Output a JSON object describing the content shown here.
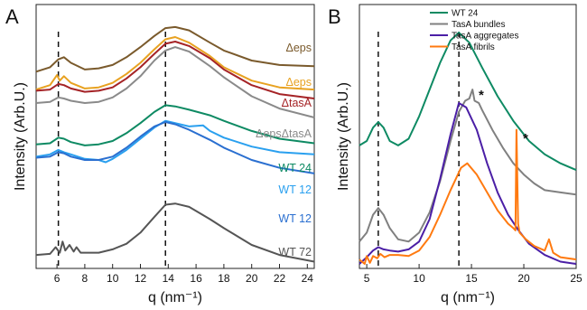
{
  "panels": {
    "a": {
      "letter": "A"
    },
    "b": {
      "letter": "B"
    }
  },
  "chart_data": [
    {
      "type": "line",
      "panel": "A",
      "xlabel": "q (nm⁻¹)",
      "ylabel": "Intensity (Arb.U.)",
      "xlim": [
        4.5,
        24.5
      ],
      "xticks": [
        6,
        8,
        10,
        12,
        14,
        16,
        18,
        20,
        22,
        24
      ],
      "y_scale": "arbitrary offsets, no y tick labels",
      "grid": false,
      "legend": "labels next to curves at right",
      "reference_lines_x": [
        6.1,
        13.8
      ],
      "series": [
        {
          "name": "Δeps",
          "color": "#7a5a2c",
          "x": [
            4.5,
            5.5,
            6.1,
            6.5,
            7.0,
            8,
            9,
            10,
            11,
            12,
            13,
            13.8,
            14.5,
            15.5,
            17,
            18,
            20,
            22,
            24.5
          ],
          "y": [
            0.86,
            0.88,
            0.915,
            0.925,
            0.9,
            0.87,
            0.875,
            0.89,
            0.925,
            0.97,
            1.02,
            1.055,
            1.06,
            1.045,
            0.99,
            0.955,
            0.91,
            0.89,
            0.885
          ]
        },
        {
          "name": "Δeps",
          "color": "#e8a221",
          "x": [
            4.5,
            5.5,
            6.0,
            6.2,
            6.5,
            7.0,
            8,
            9,
            10,
            11,
            12,
            13,
            13.8,
            14.5,
            15.5,
            17,
            18,
            20,
            22,
            24.5
          ],
          "y": [
            0.78,
            0.8,
            0.845,
            0.82,
            0.84,
            0.81,
            0.785,
            0.79,
            0.81,
            0.85,
            0.9,
            0.96,
            1.005,
            1.015,
            0.99,
            0.93,
            0.88,
            0.82,
            0.79,
            0.78
          ]
        },
        {
          "name": "ΔtasA",
          "color": "#a52326",
          "x": [
            4.5,
            5.5,
            6.1,
            6.5,
            7.0,
            8,
            9,
            10,
            11,
            12,
            13,
            13.8,
            14.5,
            15.5,
            17,
            18,
            20,
            22,
            24.5
          ],
          "y": [
            0.775,
            0.78,
            0.805,
            0.8,
            0.785,
            0.77,
            0.775,
            0.79,
            0.83,
            0.88,
            0.94,
            0.985,
            0.995,
            0.975,
            0.92,
            0.87,
            0.8,
            0.76,
            0.74
          ]
        },
        {
          "name": "ΔepsΔtasA",
          "color": "#8a8a8a",
          "x": [
            4.5,
            5.5,
            6.1,
            6.5,
            7.0,
            8,
            9,
            10,
            11,
            12,
            13,
            13.8,
            14.5,
            15.5,
            17,
            18,
            20,
            22,
            24.5
          ],
          "y": [
            0.72,
            0.725,
            0.745,
            0.74,
            0.73,
            0.72,
            0.725,
            0.745,
            0.785,
            0.84,
            0.91,
            0.955,
            0.97,
            0.95,
            0.885,
            0.835,
            0.75,
            0.695,
            0.655
          ]
        },
        {
          "name": "WT 24",
          "color": "#0e8a63",
          "x": [
            4.5,
            5.5,
            6.1,
            6.5,
            7.0,
            8,
            9,
            10,
            11,
            12,
            13,
            13.8,
            14.5,
            15.5,
            17,
            18,
            20,
            22,
            24.5
          ],
          "y": [
            0.535,
            0.54,
            0.565,
            0.56,
            0.545,
            0.53,
            0.535,
            0.55,
            0.585,
            0.63,
            0.68,
            0.71,
            0.705,
            0.69,
            0.665,
            0.64,
            0.595,
            0.56,
            0.54
          ]
        },
        {
          "name": "WT 12",
          "color": "#2aa0ef",
          "x": [
            4.5,
            5.5,
            6.1,
            6.5,
            7.0,
            8,
            9,
            9.5,
            10,
            11,
            12,
            13,
            13.8,
            14.5,
            15.5,
            16.5,
            17,
            18,
            20,
            22,
            24.5
          ],
          "y": [
            0.48,
            0.49,
            0.51,
            0.5,
            0.49,
            0.47,
            0.465,
            0.455,
            0.47,
            0.51,
            0.56,
            0.61,
            0.64,
            0.63,
            0.615,
            0.62,
            0.595,
            0.565,
            0.525,
            0.5,
            0.49
          ]
        },
        {
          "name": "WT 12",
          "color": "#2a6fd0",
          "x": [
            4.5,
            5.5,
            6.1,
            6.5,
            7.0,
            8,
            9,
            10,
            11,
            12,
            13,
            13.8,
            14.5,
            15.5,
            17,
            18,
            20,
            22,
            24.5
          ],
          "y": [
            0.475,
            0.48,
            0.5,
            0.495,
            0.48,
            0.465,
            0.465,
            0.48,
            0.52,
            0.57,
            0.615,
            0.635,
            0.625,
            0.6,
            0.555,
            0.52,
            0.465,
            0.43,
            0.405
          ]
        },
        {
          "name": "WT 72",
          "color": "#555555",
          "x": [
            4.5,
            5.5,
            5.9,
            6.2,
            6.4,
            6.6,
            6.9,
            7.2,
            7.4,
            7.7,
            8,
            9,
            10,
            11,
            12,
            13,
            13.8,
            14.5,
            15.5,
            17,
            18,
            20,
            22,
            24.5
          ],
          "y": [
            0.04,
            0.045,
            0.075,
            0.05,
            0.1,
            0.06,
            0.085,
            0.055,
            0.075,
            0.05,
            0.05,
            0.05,
            0.065,
            0.09,
            0.14,
            0.21,
            0.265,
            0.27,
            0.255,
            0.2,
            0.16,
            0.085,
            0.04,
            0.01
          ]
        }
      ]
    },
    {
      "type": "line",
      "panel": "B",
      "xlabel": "q (nm⁻¹)",
      "ylabel": "Intensity (Arb.U.)",
      "xlim": [
        4.3,
        25
      ],
      "xticks": [
        5,
        10,
        15,
        20,
        25
      ],
      "y_scale": "arbitrary offsets, no y tick labels",
      "grid": false,
      "legend": "top-right",
      "reference_lines_x": [
        6.1,
        13.8
      ],
      "annotations": [
        "*",
        "*"
      ],
      "series": [
        {
          "name": "WT 24",
          "color": "#0e8a63",
          "x": [
            4.3,
            5,
            5.6,
            6.1,
            6.6,
            7.2,
            8,
            9,
            10,
            11,
            12,
            13,
            13.8,
            14.8,
            16,
            17.5,
            19,
            20.5,
            22,
            23.5,
            25
          ],
          "y": [
            0.53,
            0.55,
            0.61,
            0.635,
            0.61,
            0.55,
            0.53,
            0.56,
            0.66,
            0.78,
            0.9,
            1.0,
            1.035,
            0.99,
            0.88,
            0.75,
            0.64,
            0.55,
            0.49,
            0.45,
            0.42
          ]
        },
        {
          "name": "TasA bundles",
          "color": "#808080",
          "x": [
            4.3,
            5,
            5.6,
            6.1,
            6.6,
            7.2,
            8,
            9,
            10,
            11,
            12,
            13,
            13.8,
            14.4,
            14.8,
            15.1,
            15.3,
            15.7,
            16,
            17,
            18,
            19,
            20,
            21,
            22,
            23.5,
            25
          ],
          "y": [
            0.1,
            0.14,
            0.22,
            0.25,
            0.22,
            0.16,
            0.11,
            0.1,
            0.14,
            0.23,
            0.37,
            0.55,
            0.68,
            0.73,
            0.74,
            0.78,
            0.73,
            0.72,
            0.69,
            0.6,
            0.52,
            0.45,
            0.4,
            0.36,
            0.33,
            0.32,
            0.31
          ]
        },
        {
          "name": "TasA aggregates",
          "color": "#4b1fa6",
          "x": [
            4.3,
            5,
            5.6,
            6.1,
            6.6,
            7.2,
            8,
            9,
            10,
            11,
            12,
            13,
            13.8,
            14.5,
            15.5,
            16.5,
            17.5,
            18.5,
            19.5,
            20.5,
            22,
            23.5,
            25
          ],
          "y": [
            0.0,
            0.03,
            0.06,
            0.075,
            0.065,
            0.06,
            0.055,
            0.065,
            0.1,
            0.2,
            0.38,
            0.58,
            0.72,
            0.7,
            0.6,
            0.45,
            0.32,
            0.22,
            0.15,
            0.09,
            0.04,
            0.01,
            0.0
          ]
        },
        {
          "name": "TasA fibrils",
          "color": "#ff7a10",
          "x": [
            4.3,
            4.8,
            5.0,
            5.3,
            5.6,
            6.0,
            6.3,
            6.7,
            7.2,
            8,
            9,
            10,
            11,
            12,
            13,
            14,
            14.6,
            15.5,
            16.5,
            17.5,
            18.5,
            19.0,
            19.2,
            19.3,
            19.45,
            19.6,
            20.2,
            21,
            22,
            22.4,
            22.8,
            23.5,
            25
          ],
          "y": [
            0.02,
            0.0,
            0.035,
            0.005,
            0.035,
            0.025,
            0.045,
            0.03,
            0.04,
            0.04,
            0.035,
            0.06,
            0.12,
            0.22,
            0.33,
            0.43,
            0.45,
            0.4,
            0.32,
            0.24,
            0.18,
            0.16,
            0.15,
            0.6,
            0.18,
            0.14,
            0.11,
            0.08,
            0.06,
            0.11,
            0.05,
            0.03,
            0.02
          ]
        }
      ]
    }
  ]
}
